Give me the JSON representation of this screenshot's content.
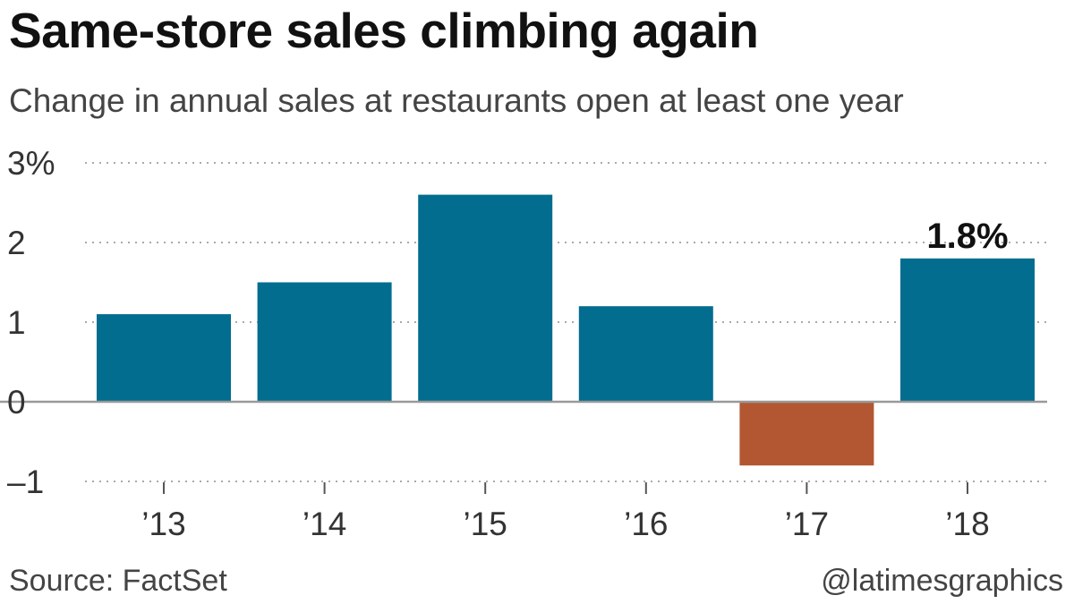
{
  "chart_data": {
    "type": "bar",
    "title": "Same-store sales climbing again",
    "subtitle": "Change in annual sales at restaurants open at least one year",
    "categories": [
      "’13",
      "’14",
      "’15",
      "’16",
      "’17",
      "’18"
    ],
    "values": [
      1.1,
      1.5,
      2.6,
      1.2,
      -0.8,
      1.8
    ],
    "ylim": [
      -1,
      3
    ],
    "yticks": [
      {
        "value": 3,
        "label": "3%"
      },
      {
        "value": 2,
        "label": "2"
      },
      {
        "value": 1,
        "label": "1"
      },
      {
        "value": 0,
        "label": "0"
      },
      {
        "value": -1,
        "label": "–1"
      }
    ],
    "data_labels": [
      {
        "category": "’18",
        "text": "1.8%"
      }
    ],
    "grid": true,
    "colors": {
      "positive": "#036d8f",
      "negative": "#b35733",
      "axis": "#999999",
      "grid": "#aaaaaa"
    }
  },
  "footer": {
    "source": "Source: FactSet",
    "credit": "@latimesgraphics"
  }
}
